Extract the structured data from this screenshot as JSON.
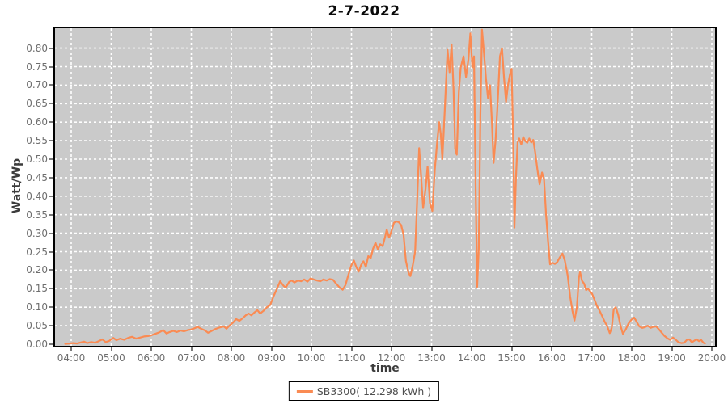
{
  "title": "2-7-2022",
  "axes": {
    "y_label": "Watt/Wp",
    "x_label": "time",
    "y_ticks": [
      "0.00",
      "0.05",
      "0.10",
      "0.15",
      "0.20",
      "0.25",
      "0.30",
      "0.35",
      "0.40",
      "0.45",
      "0.50",
      "0.55",
      "0.60",
      "0.65",
      "0.70",
      "0.75",
      "0.80"
    ],
    "x_ticks": [
      "04:00",
      "05:00",
      "06:00",
      "07:00",
      "08:00",
      "09:00",
      "10:00",
      "11:00",
      "12:00",
      "13:00",
      "14:00",
      "15:00",
      "16:00",
      "17:00",
      "18:00",
      "19:00",
      "20:00"
    ]
  },
  "legend": {
    "label": "SB3300( 12.298 kWh )"
  },
  "colors": {
    "plot_background": "#cacaca",
    "gridline": "#ffffff",
    "series_line": "#fa8b53",
    "tick_text": "#6e6e6e",
    "border": "#000000"
  },
  "chart_data": {
    "type": "line",
    "title": "2-7-2022",
    "xlabel": "time",
    "ylabel": "Watt/Wp",
    "xlim_hours": [
      3.6,
      20.08
    ],
    "ylim": [
      0,
      0.854
    ],
    "x_tick_hours": [
      4,
      5,
      6,
      7,
      8,
      9,
      10,
      11,
      12,
      13,
      14,
      15,
      16,
      17,
      18,
      19,
      20
    ],
    "y_tick_values": [
      0,
      0.05,
      0.1,
      0.15,
      0.2,
      0.25,
      0.3,
      0.35,
      0.4,
      0.45,
      0.5,
      0.55,
      0.6,
      0.65,
      0.7,
      0.75,
      0.8
    ],
    "grid": true,
    "legend_position": "bottom",
    "series": [
      {
        "name": "SB3300( 12.298 kWh )",
        "energy_kwh_label": "12.298 kWh",
        "points": [
          [
            3.85,
            0.001
          ],
          [
            3.95,
            0.002
          ],
          [
            4.05,
            0.003
          ],
          [
            4.15,
            0.002
          ],
          [
            4.25,
            0.005
          ],
          [
            4.32,
            0.007
          ],
          [
            4.4,
            0.003
          ],
          [
            4.5,
            0.006
          ],
          [
            4.6,
            0.004
          ],
          [
            4.7,
            0.009
          ],
          [
            4.78,
            0.013
          ],
          [
            4.86,
            0.006
          ],
          [
            4.95,
            0.009
          ],
          [
            5.05,
            0.017
          ],
          [
            5.13,
            0.011
          ],
          [
            5.22,
            0.015
          ],
          [
            5.32,
            0.012
          ],
          [
            5.42,
            0.017
          ],
          [
            5.52,
            0.02
          ],
          [
            5.62,
            0.015
          ],
          [
            5.72,
            0.018
          ],
          [
            5.82,
            0.021
          ],
          [
            5.92,
            0.022
          ],
          [
            6.0,
            0.024
          ],
          [
            6.1,
            0.028
          ],
          [
            6.2,
            0.032
          ],
          [
            6.3,
            0.038
          ],
          [
            6.38,
            0.029
          ],
          [
            6.46,
            0.033
          ],
          [
            6.55,
            0.036
          ],
          [
            6.64,
            0.033
          ],
          [
            6.73,
            0.037
          ],
          [
            6.82,
            0.035
          ],
          [
            6.91,
            0.038
          ],
          [
            7.0,
            0.04
          ],
          [
            7.08,
            0.043
          ],
          [
            7.16,
            0.047
          ],
          [
            7.24,
            0.042
          ],
          [
            7.33,
            0.038
          ],
          [
            7.42,
            0.031
          ],
          [
            7.51,
            0.036
          ],
          [
            7.6,
            0.041
          ],
          [
            7.7,
            0.045
          ],
          [
            7.81,
            0.048
          ],
          [
            7.88,
            0.042
          ],
          [
            7.96,
            0.051
          ],
          [
            8.04,
            0.058
          ],
          [
            8.12,
            0.068
          ],
          [
            8.2,
            0.063
          ],
          [
            8.28,
            0.07
          ],
          [
            8.36,
            0.078
          ],
          [
            8.43,
            0.083
          ],
          [
            8.5,
            0.078
          ],
          [
            8.58,
            0.086
          ],
          [
            8.65,
            0.092
          ],
          [
            8.72,
            0.083
          ],
          [
            8.8,
            0.09
          ],
          [
            8.89,
            0.1
          ],
          [
            8.97,
            0.106
          ],
          [
            9.06,
            0.131
          ],
          [
            9.14,
            0.15
          ],
          [
            9.22,
            0.17
          ],
          [
            9.3,
            0.158
          ],
          [
            9.36,
            0.153
          ],
          [
            9.44,
            0.168
          ],
          [
            9.5,
            0.172
          ],
          [
            9.58,
            0.167
          ],
          [
            9.66,
            0.172
          ],
          [
            9.74,
            0.17
          ],
          [
            9.82,
            0.175
          ],
          [
            9.9,
            0.169
          ],
          [
            9.98,
            0.178
          ],
          [
            10.06,
            0.175
          ],
          [
            10.14,
            0.172
          ],
          [
            10.22,
            0.17
          ],
          [
            10.3,
            0.175
          ],
          [
            10.38,
            0.172
          ],
          [
            10.46,
            0.176
          ],
          [
            10.54,
            0.174
          ],
          [
            10.62,
            0.163
          ],
          [
            10.7,
            0.154
          ],
          [
            10.78,
            0.147
          ],
          [
            10.85,
            0.16
          ],
          [
            10.92,
            0.186
          ],
          [
            11.0,
            0.214
          ],
          [
            11.06,
            0.226
          ],
          [
            11.12,
            0.209
          ],
          [
            11.18,
            0.196
          ],
          [
            11.24,
            0.214
          ],
          [
            11.3,
            0.224
          ],
          [
            11.36,
            0.209
          ],
          [
            11.42,
            0.238
          ],
          [
            11.48,
            0.233
          ],
          [
            11.54,
            0.258
          ],
          [
            11.6,
            0.274
          ],
          [
            11.66,
            0.256
          ],
          [
            11.72,
            0.27
          ],
          [
            11.78,
            0.265
          ],
          [
            11.84,
            0.29
          ],
          [
            11.88,
            0.31
          ],
          [
            11.94,
            0.288
          ],
          [
            12.0,
            0.306
          ],
          [
            12.06,
            0.328
          ],
          [
            12.12,
            0.332
          ],
          [
            12.18,
            0.33
          ],
          [
            12.24,
            0.322
          ],
          [
            12.3,
            0.296
          ],
          [
            12.36,
            0.225
          ],
          [
            12.42,
            0.195
          ],
          [
            12.47,
            0.184
          ],
          [
            12.53,
            0.212
          ],
          [
            12.59,
            0.25
          ],
          [
            12.63,
            0.36
          ],
          [
            12.69,
            0.53
          ],
          [
            12.74,
            0.455
          ],
          [
            12.79,
            0.368
          ],
          [
            12.85,
            0.42
          ],
          [
            12.9,
            0.48
          ],
          [
            12.96,
            0.382
          ],
          [
            13.02,
            0.36
          ],
          [
            13.08,
            0.47
          ],
          [
            13.14,
            0.545
          ],
          [
            13.19,
            0.6
          ],
          [
            13.23,
            0.568
          ],
          [
            13.27,
            0.5
          ],
          [
            13.33,
            0.63
          ],
          [
            13.4,
            0.795
          ],
          [
            13.45,
            0.735
          ],
          [
            13.5,
            0.81
          ],
          [
            13.55,
            0.69
          ],
          [
            13.59,
            0.528
          ],
          [
            13.63,
            0.512
          ],
          [
            13.68,
            0.68
          ],
          [
            13.73,
            0.748
          ],
          [
            13.8,
            0.778
          ],
          [
            13.86,
            0.722
          ],
          [
            13.92,
            0.768
          ],
          [
            13.97,
            0.84
          ],
          [
            14.02,
            0.748
          ],
          [
            14.06,
            0.778
          ],
          [
            14.1,
            0.43
          ],
          [
            14.14,
            0.155
          ],
          [
            14.18,
            0.26
          ],
          [
            14.22,
            0.62
          ],
          [
            14.26,
            0.85
          ],
          [
            14.31,
            0.788
          ],
          [
            14.36,
            0.718
          ],
          [
            14.41,
            0.665
          ],
          [
            14.46,
            0.7
          ],
          [
            14.51,
            0.598
          ],
          [
            14.55,
            0.49
          ],
          [
            14.6,
            0.552
          ],
          [
            14.65,
            0.65
          ],
          [
            14.71,
            0.778
          ],
          [
            14.76,
            0.8
          ],
          [
            14.81,
            0.72
          ],
          [
            14.86,
            0.655
          ],
          [
            14.91,
            0.7
          ],
          [
            14.96,
            0.73
          ],
          [
            15.0,
            0.744
          ],
          [
            15.04,
            0.54
          ],
          [
            15.07,
            0.315
          ],
          [
            15.11,
            0.452
          ],
          [
            15.15,
            0.545
          ],
          [
            15.19,
            0.556
          ],
          [
            15.24,
            0.54
          ],
          [
            15.29,
            0.56
          ],
          [
            15.34,
            0.549
          ],
          [
            15.39,
            0.544
          ],
          [
            15.44,
            0.556
          ],
          [
            15.49,
            0.545
          ],
          [
            15.54,
            0.552
          ],
          [
            15.59,
            0.518
          ],
          [
            15.64,
            0.475
          ],
          [
            15.7,
            0.432
          ],
          [
            15.76,
            0.464
          ],
          [
            15.81,
            0.445
          ],
          [
            15.86,
            0.35
          ],
          [
            15.91,
            0.28
          ],
          [
            15.96,
            0.216
          ],
          [
            16.02,
            0.22
          ],
          [
            16.08,
            0.217
          ],
          [
            16.14,
            0.222
          ],
          [
            16.2,
            0.234
          ],
          [
            16.27,
            0.245
          ],
          [
            16.33,
            0.226
          ],
          [
            16.4,
            0.186
          ],
          [
            16.46,
            0.13
          ],
          [
            16.52,
            0.09
          ],
          [
            16.57,
            0.064
          ],
          [
            16.63,
            0.1
          ],
          [
            16.68,
            0.18
          ],
          [
            16.71,
            0.195
          ],
          [
            16.76,
            0.171
          ],
          [
            16.81,
            0.164
          ],
          [
            16.86,
            0.146
          ],
          [
            16.91,
            0.15
          ],
          [
            16.96,
            0.143
          ],
          [
            17.01,
            0.136
          ],
          [
            17.07,
            0.12
          ],
          [
            17.13,
            0.104
          ],
          [
            17.19,
            0.092
          ],
          [
            17.26,
            0.076
          ],
          [
            17.32,
            0.062
          ],
          [
            17.39,
            0.048
          ],
          [
            17.45,
            0.03
          ],
          [
            17.5,
            0.044
          ],
          [
            17.55,
            0.094
          ],
          [
            17.6,
            0.1
          ],
          [
            17.66,
            0.08
          ],
          [
            17.72,
            0.05
          ],
          [
            17.78,
            0.028
          ],
          [
            17.85,
            0.04
          ],
          [
            17.92,
            0.056
          ],
          [
            17.99,
            0.066
          ],
          [
            18.06,
            0.072
          ],
          [
            18.12,
            0.061
          ],
          [
            18.19,
            0.048
          ],
          [
            18.26,
            0.044
          ],
          [
            18.33,
            0.046
          ],
          [
            18.4,
            0.05
          ],
          [
            18.47,
            0.044
          ],
          [
            18.54,
            0.047
          ],
          [
            18.61,
            0.048
          ],
          [
            18.68,
            0.04
          ],
          [
            18.75,
            0.031
          ],
          [
            18.82,
            0.022
          ],
          [
            18.89,
            0.016
          ],
          [
            18.96,
            0.012
          ],
          [
            19.03,
            0.018
          ],
          [
            19.1,
            0.012
          ],
          [
            19.17,
            0.005
          ],
          [
            19.24,
            0.003
          ],
          [
            19.31,
            0.004
          ],
          [
            19.38,
            0.012
          ],
          [
            19.44,
            0.013
          ],
          [
            19.5,
            0.005
          ],
          [
            19.57,
            0.01
          ],
          [
            19.62,
            0.013
          ],
          [
            19.68,
            0.008
          ],
          [
            19.73,
            0.012
          ],
          [
            19.79,
            0.004
          ],
          [
            19.83,
            0.002
          ]
        ]
      }
    ]
  }
}
